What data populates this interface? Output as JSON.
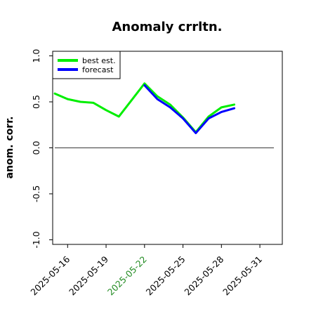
{
  "chart_data": {
    "type": "line",
    "title": "Anomaly crrltn.",
    "ylabel": "anom. corr.",
    "xlabel": "",
    "ylim": [
      -1.05,
      1.05
    ],
    "xlim": [
      "2025-05-14T20:00",
      "2025-06-01T18:00"
    ],
    "yticks": [
      -1.0,
      -0.5,
      0.0,
      0.5,
      1.0
    ],
    "ytick_labels": [
      "-1.0",
      "-0.5",
      "0.0",
      "0.5",
      "1.0"
    ],
    "xticks": [
      "2025-05-16",
      "2025-05-19",
      "2025-05-22",
      "2025-05-25",
      "2025-05-28",
      "2025-05-31"
    ],
    "xtick_labels": [
      "2025-05-16",
      "2025-05-19",
      "2025-05-22",
      "2025-05-25",
      "2025-05-28",
      "2025-05-31"
    ],
    "highlighted_xtick": "2025-05-22",
    "highlight_color": "#228b22",
    "reference_line": 0.0,
    "legend": {
      "placement": "top-left"
    },
    "x": [
      "2025-05-15",
      "2025-05-16",
      "2025-05-17",
      "2025-05-18",
      "2025-05-19",
      "2025-05-20",
      "2025-05-21",
      "2025-05-22",
      "2025-05-23",
      "2025-05-24",
      "2025-05-25",
      "2025-05-26",
      "2025-05-27",
      "2025-05-28",
      "2025-05-29"
    ],
    "series": [
      {
        "name": "best est.",
        "color": "#00ee00",
        "x": [
          "2025-05-15",
          "2025-05-16",
          "2025-05-17",
          "2025-05-18",
          "2025-05-19",
          "2025-05-20",
          "2025-05-21",
          "2025-05-22",
          "2025-05-23",
          "2025-05-24",
          "2025-05-25",
          "2025-05-26",
          "2025-05-27",
          "2025-05-28",
          "2025-05-29"
        ],
        "values": [
          0.59,
          0.53,
          0.5,
          0.49,
          0.41,
          0.34,
          0.52,
          0.7,
          0.56,
          0.47,
          0.33,
          0.17,
          0.34,
          0.44,
          0.47
        ]
      },
      {
        "name": "forecast",
        "color": "#0000ff",
        "x": [
          "2025-05-22",
          "2025-05-23",
          "2025-05-24",
          "2025-05-25",
          "2025-05-26",
          "2025-05-27",
          "2025-05-28",
          "2025-05-29"
        ],
        "values": [
          0.68,
          0.53,
          0.44,
          0.32,
          0.16,
          0.32,
          0.39,
          0.43
        ]
      }
    ]
  }
}
